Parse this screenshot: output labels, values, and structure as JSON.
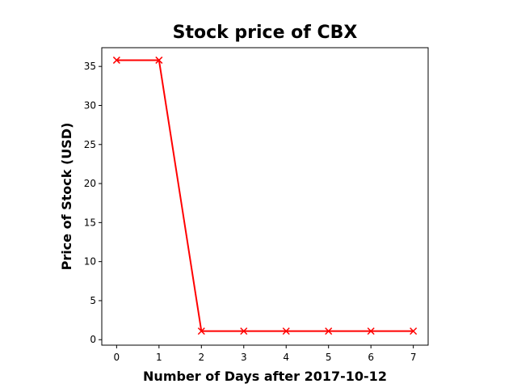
{
  "chart_data": {
    "type": "line",
    "title": "Stock price of CBX",
    "xlabel": "Number of Days after 2017-10-12",
    "ylabel": "Price of Stock (USD)",
    "x": [
      0,
      1,
      2,
      3,
      4,
      5,
      6,
      7
    ],
    "series": [
      {
        "values": [
          35.8,
          35.8,
          1.1,
          1.1,
          1.1,
          1.1,
          1.1,
          1.1
        ],
        "color": "#ff0000",
        "marker": "x"
      }
    ],
    "xlim": [
      -0.35,
      7.35
    ],
    "ylim": [
      -0.7,
      37.4
    ],
    "xticks": [
      "0",
      "1",
      "2",
      "3",
      "4",
      "5",
      "6",
      "7"
    ],
    "yticks": [
      "0",
      "5",
      "10",
      "15",
      "20",
      "25",
      "30",
      "35"
    ],
    "grid": false,
    "legend": "none"
  }
}
